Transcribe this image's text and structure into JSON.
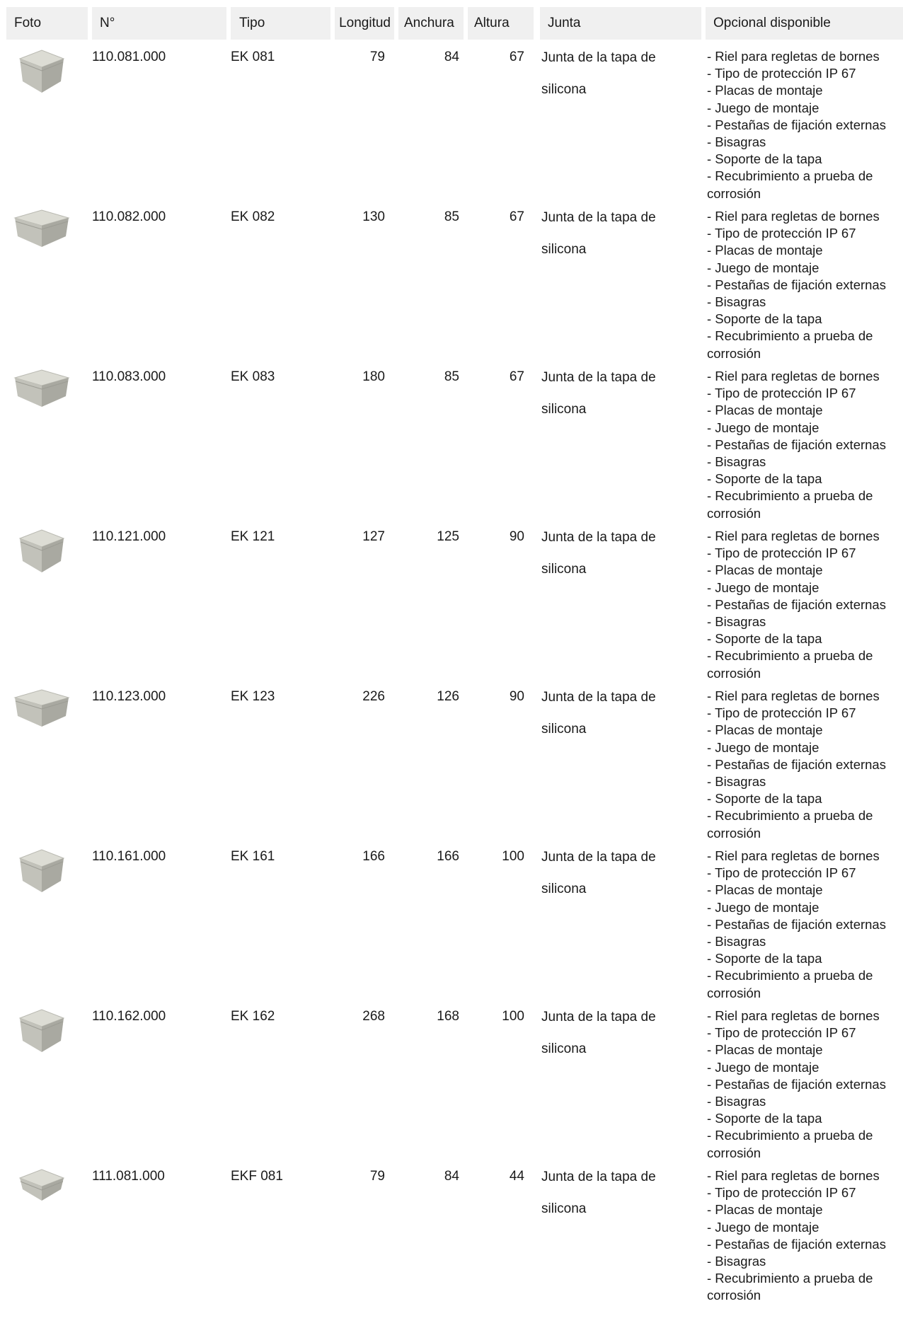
{
  "columns": {
    "photo": "Foto",
    "number": "N°",
    "type": "Tipo",
    "length": "Longitud",
    "width": "Anchura",
    "height": "Altura",
    "seal": "Junta",
    "options": "Opcional disponible"
  },
  "rows": [
    {
      "number": "110.081.000",
      "type": "EK 081",
      "length": "79",
      "width": "84",
      "height": "67",
      "seal_line1": "Junta de la tapa de",
      "seal_line2": "silicona",
      "shape": "cube",
      "options": [
        "- Riel para regletas de bornes",
        "- Tipo de protección IP 67",
        "- Placas de montaje",
        "- Juego de montaje",
        "- Pestañas de fijación externas",
        "- Bisagras",
        "- Soporte de la tapa",
        "- Recubrimiento a prueba de corrosión"
      ]
    },
    {
      "number": "110.082.000",
      "type": "EK 082",
      "length": "130",
      "width": "85",
      "height": "67",
      "seal_line1": "Junta de la tapa de",
      "seal_line2": "silicona",
      "shape": "long",
      "options": [
        "- Riel para regletas de bornes",
        "- Tipo de protección IP 67",
        "- Placas de montaje",
        "- Juego de montaje",
        "- Pestañas de fijación externas",
        "- Bisagras",
        "- Soporte de la tapa",
        "- Recubrimiento a prueba de corrosión"
      ]
    },
    {
      "number": "110.083.000",
      "type": "EK 083",
      "length": "180",
      "width": "85",
      "height": "67",
      "seal_line1": "Junta de la tapa de",
      "seal_line2": "silicona",
      "shape": "long",
      "options": [
        "- Riel para regletas de bornes",
        "- Tipo de protección IP 67",
        "- Placas de montaje",
        "- Juego de montaje",
        "- Pestañas de fijación externas",
        "- Bisagras",
        "- Soporte de la tapa",
        "- Recubrimiento a prueba de corrosión"
      ]
    },
    {
      "number": "110.121.000",
      "type": "EK 121",
      "length": "127",
      "width": "125",
      "height": "90",
      "seal_line1": "Junta de la tapa de",
      "seal_line2": "silicona",
      "shape": "cube",
      "options": [
        "- Riel para regletas de bornes",
        "- Tipo de protección IP 67",
        "- Placas de montaje",
        "- Juego de montaje",
        "- Pestañas de fijación externas",
        "- Bisagras",
        "- Soporte de la tapa",
        "- Recubrimiento a prueba de corrosión"
      ]
    },
    {
      "number": "110.123.000",
      "type": "EK 123",
      "length": "226",
      "width": "126",
      "height": "90",
      "seal_line1": "Junta de la tapa de",
      "seal_line2": "silicona",
      "shape": "long",
      "options": [
        "- Riel para regletas de bornes",
        "- Tipo de protección IP 67",
        "- Placas de montaje",
        "- Juego de montaje",
        "- Pestañas de fijación externas",
        "- Bisagras",
        "- Soporte de la tapa",
        "- Recubrimiento a prueba de corrosión"
      ]
    },
    {
      "number": "110.161.000",
      "type": "EK 161",
      "length": "166",
      "width": "166",
      "height": "100",
      "seal_line1": "Junta de la tapa de",
      "seal_line2": "silicona",
      "shape": "cube",
      "options": [
        "- Riel para regletas de bornes",
        "- Tipo de protección IP 67",
        "- Placas de montaje",
        "- Juego de montaje",
        "- Pestañas de fijación externas",
        "- Bisagras",
        "- Soporte de la tapa",
        "- Recubrimiento a prueba de corrosión"
      ]
    },
    {
      "number": "110.162.000",
      "type": "EK 162",
      "length": "268",
      "width": "168",
      "height": "100",
      "seal_line1": "Junta de la tapa de",
      "seal_line2": "silicona",
      "shape": "cube",
      "options": [
        "- Riel para regletas de bornes",
        "- Tipo de protección IP 67",
        "- Placas de montaje",
        "- Juego de montaje",
        "- Pestañas de fijación externas",
        "- Bisagras",
        "- Soporte de la tapa",
        "- Recubrimiento a prueba de corrosión"
      ]
    },
    {
      "number": "111.081.000",
      "type": "EKF 081",
      "length": "79",
      "width": "84",
      "height": "44",
      "seal_line1": "Junta de la tapa de",
      "seal_line2": "silicona",
      "shape": "flat",
      "options": [
        "- Riel para regletas de bornes",
        "- Tipo de protección IP 67",
        "- Placas de montaje",
        "- Juego de montaje",
        "- Pestañas de fijación externas",
        "- Bisagras",
        "- Recubrimiento a prueba de corrosión"
      ]
    }
  ],
  "colors": {
    "header_bg": "#f0f0f0",
    "text": "#1a1a1a",
    "box_top": "#dcdcd4",
    "box_left": "#c2c2ba",
    "box_right": "#a9a9a1"
  }
}
